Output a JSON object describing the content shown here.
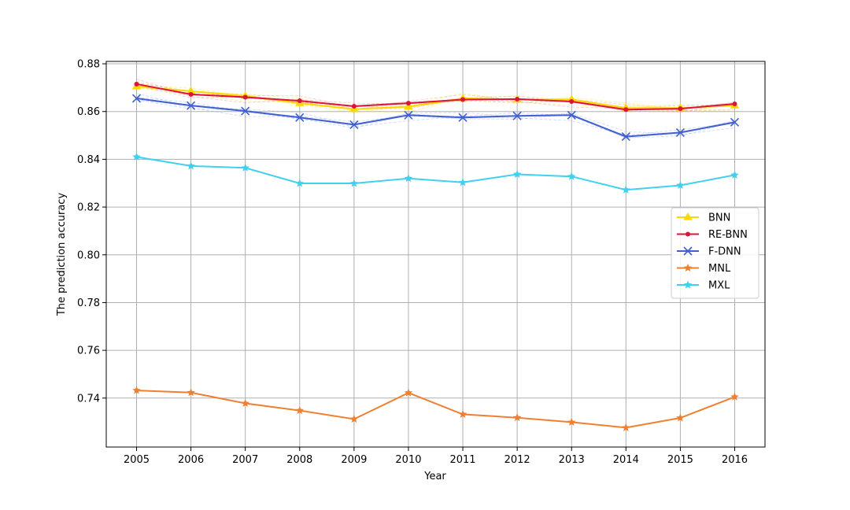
{
  "chart_data": {
    "type": "line",
    "title": "",
    "xlabel": "Year",
    "ylabel": "The prediction accuracy",
    "x": [
      "2005",
      "2006",
      "2007",
      "2008",
      "2009",
      "2010",
      "2011",
      "2012",
      "2013",
      "2014",
      "2015",
      "2016"
    ],
    "y_ticks": [
      "0.74",
      "0.76",
      "0.78",
      "0.80",
      "0.82",
      "0.84",
      "0.86",
      "0.88"
    ],
    "ylim": [
      0.7195,
      0.881
    ],
    "grid": true,
    "legend_position": "center-right",
    "series": [
      {
        "name": "BNN",
        "marker": "triangle",
        "color": "#ffd700",
        "values": [
          0.8705,
          0.8685,
          0.8665,
          0.8635,
          0.861,
          0.862,
          0.8655,
          0.865,
          0.865,
          0.8615,
          0.8615,
          0.8625
        ]
      },
      {
        "name": "RE-BNN",
        "marker": "dot",
        "color": "#dc143c",
        "values": [
          0.8715,
          0.8672,
          0.866,
          0.8645,
          0.8622,
          0.8635,
          0.865,
          0.8652,
          0.8642,
          0.8608,
          0.8612,
          0.8632
        ]
      },
      {
        "name": "F-DNN",
        "marker": "x",
        "color": "#4060d0",
        "values": [
          0.8655,
          0.8625,
          0.8602,
          0.8575,
          0.8545,
          0.8585,
          0.8575,
          0.8582,
          0.8585,
          0.8495,
          0.8512,
          0.8555
        ]
      },
      {
        "name": "MNL",
        "marker": "star",
        "color": "#f08030",
        "values": [
          0.7432,
          0.7423,
          0.7378,
          0.7348,
          0.7312,
          0.7422,
          0.7332,
          0.7318,
          0.7299,
          0.7276,
          0.7317,
          0.7405
        ]
      },
      {
        "name": "MXL",
        "marker": "star",
        "color": "#40d0f0",
        "values": [
          0.841,
          0.8372,
          0.8364,
          0.8299,
          0.8299,
          0.832,
          0.8303,
          0.8337,
          0.8328,
          0.8272,
          0.8291,
          0.8334
        ]
      }
    ]
  }
}
